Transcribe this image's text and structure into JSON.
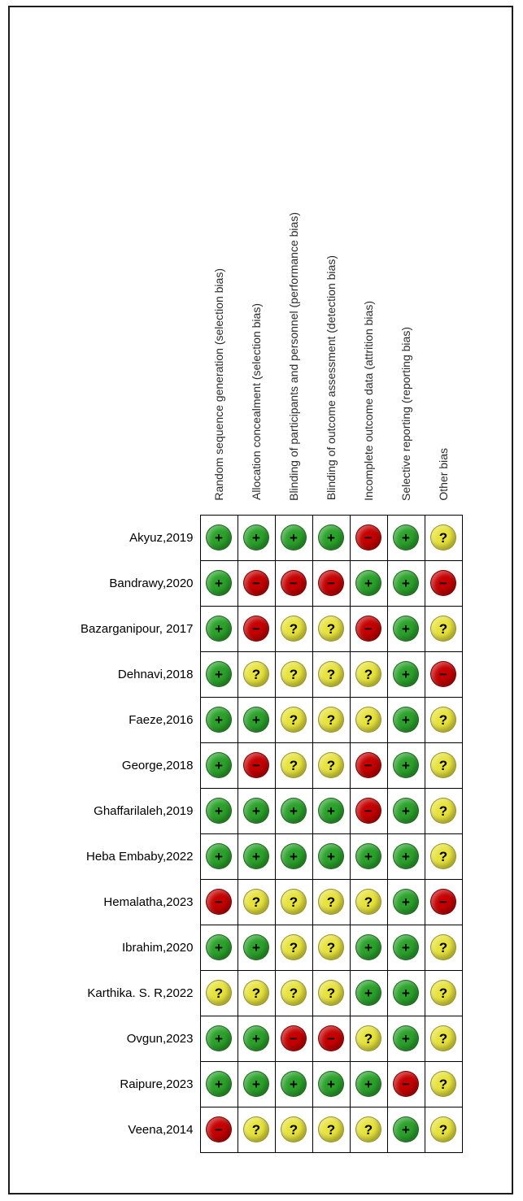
{
  "figure": {
    "name": "risk-of-bias-summary"
  },
  "chart_data": {
    "type": "heatmap",
    "columns": [
      "Random sequence generation (selection bias)",
      "Allocation concealment (selection bias)",
      "Blinding of participants and personnel (performance bias)",
      "Blinding of outcome assessment (detection bias)",
      "Incomplete outcome data (attrition bias)",
      "Selective reporting (reporting bias)",
      "Other bias"
    ],
    "judgment_colors": {
      "+": "#2aa22a",
      "-": "#c60000",
      "?": "#e7e33c"
    },
    "judgment_symbols": {
      "+": "+",
      "-": "−",
      "?": "?"
    },
    "judgment_names": {
      "+": "low-risk",
      "-": "high-risk",
      "?": "unclear-risk"
    },
    "rows": [
      {
        "study": "Akyuz,2019",
        "judgments": [
          "+",
          "+",
          "+",
          "+",
          "-",
          "+",
          "?"
        ]
      },
      {
        "study": "Bandrawy,2020",
        "judgments": [
          "+",
          "-",
          "-",
          "-",
          "+",
          "+",
          "-"
        ]
      },
      {
        "study": "Bazarganipour, 2017",
        "judgments": [
          "+",
          "-",
          "?",
          "?",
          "-",
          "+",
          "?"
        ]
      },
      {
        "study": "Dehnavi,2018",
        "judgments": [
          "+",
          "?",
          "?",
          "?",
          "?",
          "+",
          "-"
        ]
      },
      {
        "study": "Faeze,2016",
        "judgments": [
          "+",
          "+",
          "?",
          "?",
          "?",
          "+",
          "?"
        ]
      },
      {
        "study": "George,2018",
        "judgments": [
          "+",
          "-",
          "?",
          "?",
          "-",
          "+",
          "?"
        ]
      },
      {
        "study": "Ghaffarilaleh,2019",
        "judgments": [
          "+",
          "+",
          "+",
          "+",
          "-",
          "+",
          "?"
        ]
      },
      {
        "study": "Heba Embaby,2022",
        "judgments": [
          "+",
          "+",
          "+",
          "+",
          "+",
          "+",
          "?"
        ]
      },
      {
        "study": "Hemalatha,2023",
        "judgments": [
          "-",
          "?",
          "?",
          "?",
          "?",
          "+",
          "-"
        ]
      },
      {
        "study": "Ibrahim,2020",
        "judgments": [
          "+",
          "+",
          "?",
          "?",
          "+",
          "+",
          "?"
        ]
      },
      {
        "study": "Karthika. S. R,2022",
        "judgments": [
          "?",
          "?",
          "?",
          "?",
          "+",
          "+",
          "?"
        ]
      },
      {
        "study": "Ovgun,2023",
        "judgments": [
          "+",
          "+",
          "-",
          "-",
          "?",
          "+",
          "?"
        ]
      },
      {
        "study": "Raipure,2023",
        "judgments": [
          "+",
          "+",
          "+",
          "+",
          "+",
          "-",
          "?"
        ]
      },
      {
        "study": "Veena,2014",
        "judgments": [
          "-",
          "?",
          "?",
          "?",
          "?",
          "+",
          "?"
        ]
      }
    ]
  }
}
